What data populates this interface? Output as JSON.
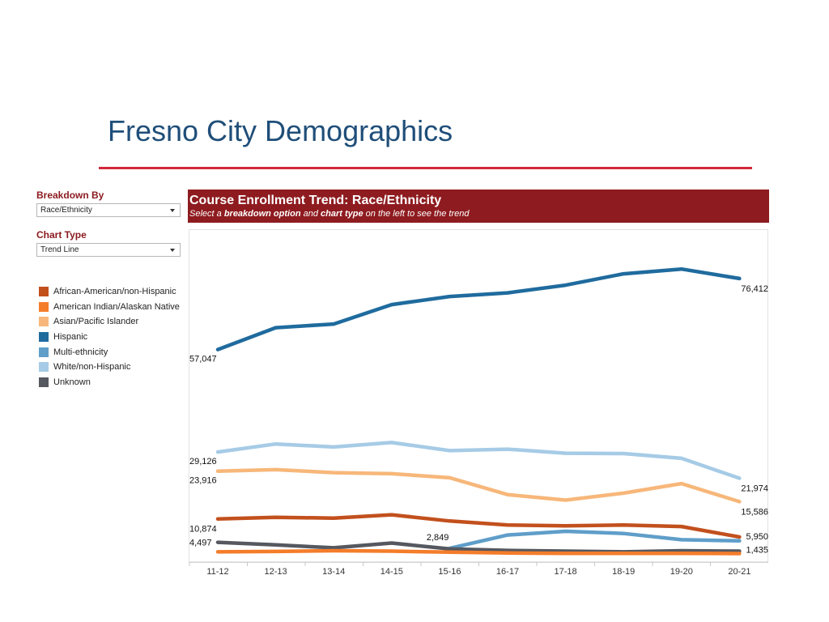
{
  "slide": {
    "title": "Fresno City Demographics"
  },
  "controls": {
    "breakdown_label": "Breakdown By",
    "breakdown_value": "Race/Ethnicity",
    "chart_type_label": "Chart Type",
    "chart_type_value": "Trend Line"
  },
  "chart_header": {
    "title": "Course Enrollment Trend: Race/Ethnicity",
    "subtitle_parts": [
      "Select a ",
      "breakdown option",
      " and ",
      "chart type",
      " on the left to see the trend"
    ]
  },
  "legend": [
    {
      "name": "African-American/non-Hispanic",
      "color": "#c2501d"
    },
    {
      "name": "American Indian/Alaskan Native",
      "color": "#f47d2a"
    },
    {
      "name": "Asian/Pacific Islander",
      "color": "#f7b77a"
    },
    {
      "name": "Hispanic",
      "color": "#1f6b9e"
    },
    {
      "name": "Multi-ethnicity",
      "color": "#5f9ec9"
    },
    {
      "name": "White/non-Hispanic",
      "color": "#a6cbe6"
    },
    {
      "name": "Unknown",
      "color": "#55585f"
    }
  ],
  "chart_data": {
    "type": "line",
    "title": "Course Enrollment Trend: Race/Ethnicity",
    "x": [
      "11-12",
      "12-13",
      "13-14",
      "14-15",
      "15-16",
      "16-17",
      "17-18",
      "18-19",
      "19-20",
      "20-21"
    ],
    "ylim": [
      0,
      85000
    ],
    "grid": false,
    "series": [
      {
        "name": "Hispanic",
        "color": "#1f6b9e",
        "values": [
          57047,
          63000,
          64000,
          69300,
          71500,
          72500,
          74600,
          77700,
          79000,
          76412
        ],
        "labels": [
          {
            "index": 0,
            "text": "57,047"
          },
          {
            "index": 9,
            "text": "76,412"
          }
        ]
      },
      {
        "name": "White/non-Hispanic",
        "color": "#a6cbe6",
        "values": [
          29126,
          31300,
          30500,
          31700,
          29500,
          29900,
          28800,
          28700,
          27400,
          21974
        ],
        "labels": [
          {
            "index": 0,
            "text": "29,126"
          },
          {
            "index": 9,
            "text": "21,974"
          }
        ]
      },
      {
        "name": "Asian/Pacific Islander",
        "color": "#f7b77a",
        "values": [
          23916,
          24300,
          23500,
          23200,
          22100,
          17500,
          16000,
          17900,
          20500,
          15586
        ],
        "labels": [
          {
            "index": 0,
            "text": "23,916"
          },
          {
            "index": 9,
            "text": "15,586"
          }
        ]
      },
      {
        "name": "African-American/non-Hispanic",
        "color": "#c2501d",
        "values": [
          10874,
          11300,
          11100,
          12000,
          10300,
          9200,
          9000,
          9200,
          8800,
          5950
        ],
        "labels": [
          {
            "index": 0,
            "text": "10,874"
          },
          {
            "index": 9,
            "text": "5,950"
          }
        ]
      },
      {
        "name": "Multi-ethnicity",
        "color": "#5f9ec9",
        "values": [
          null,
          null,
          null,
          null,
          2849,
          6500,
          7500,
          6900,
          5200,
          4900
        ],
        "labels": [
          {
            "index": 4,
            "text": "2,849"
          }
        ]
      },
      {
        "name": "Unknown",
        "color": "#55585f",
        "values": [
          4497,
          3800,
          3000,
          4300,
          2700,
          2300,
          2100,
          1900,
          2200,
          2100
        ],
        "labels": [
          {
            "index": 0,
            "text": "4,497"
          }
        ]
      },
      {
        "name": "American Indian/Alaskan Native",
        "color": "#f47d2a",
        "values": [
          1900,
          2000,
          2200,
          2100,
          1800,
          1600,
          1500,
          1500,
          1500,
          1435
        ],
        "labels": [
          {
            "index": 9,
            "text": "1,435"
          }
        ]
      }
    ]
  }
}
